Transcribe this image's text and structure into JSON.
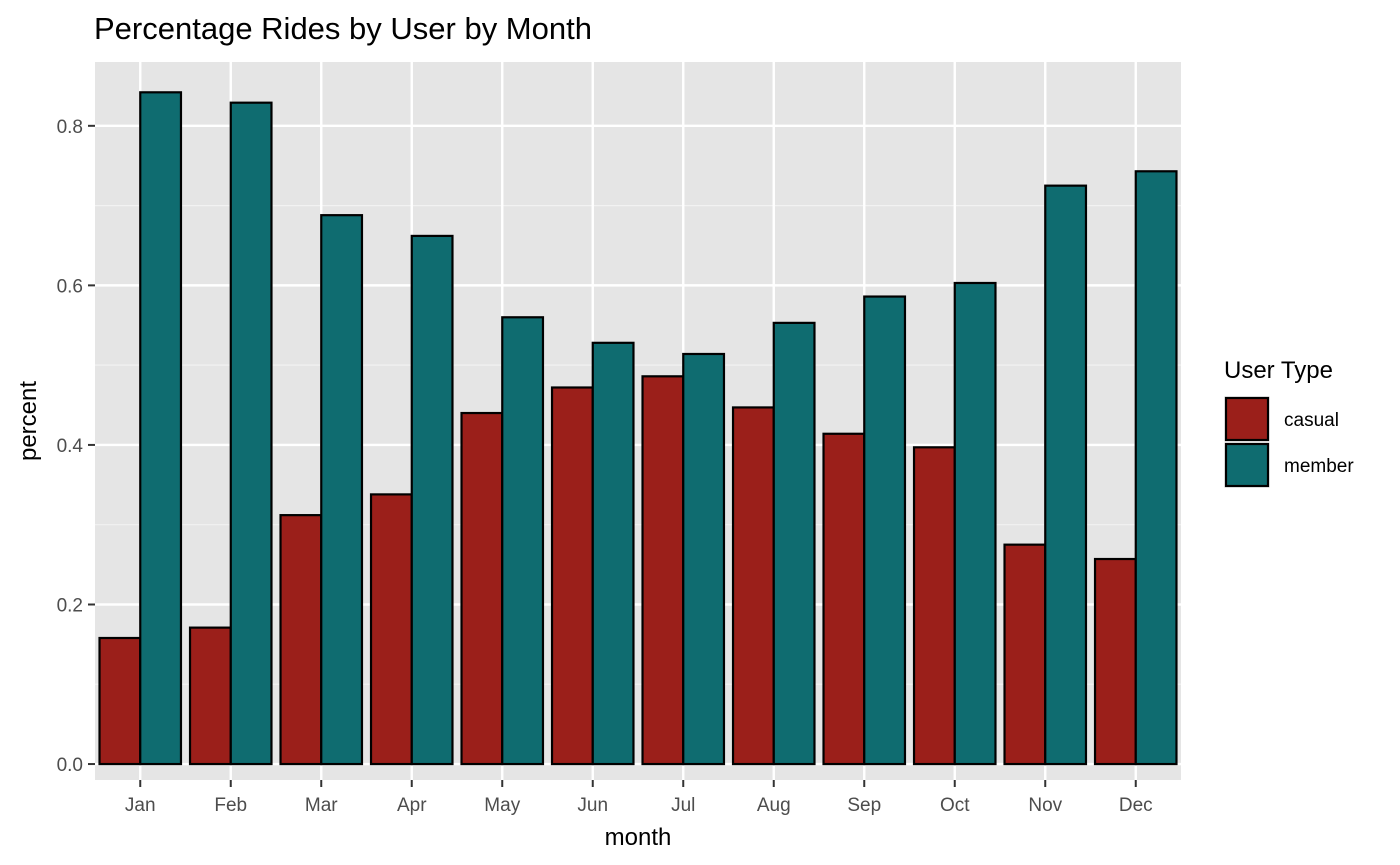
{
  "chart_data": {
    "type": "bar",
    "title": "Percentage Rides by User by Month",
    "xlabel": "month",
    "ylabel": "percent",
    "categories": [
      "Jan",
      "Feb",
      "Mar",
      "Apr",
      "May",
      "Jun",
      "Jul",
      "Aug",
      "Sep",
      "Oct",
      "Nov",
      "Dec"
    ],
    "series": [
      {
        "name": "casual",
        "color": "#9b1f1a",
        "values": [
          0.158,
          0.171,
          0.312,
          0.338,
          0.44,
          0.472,
          0.486,
          0.447,
          0.414,
          0.397,
          0.275,
          0.257
        ]
      },
      {
        "name": "member",
        "color": "#0f6c70",
        "values": [
          0.842,
          0.829,
          0.688,
          0.662,
          0.56,
          0.528,
          0.514,
          0.553,
          0.586,
          0.603,
          0.725,
          0.743
        ]
      }
    ],
    "ylim": [
      -0.02,
      0.88
    ],
    "yticks": [
      0.0,
      0.2,
      0.4,
      0.6,
      0.8
    ],
    "ytick_labels": [
      "0.0",
      "0.2",
      "0.4",
      "0.6",
      "0.8"
    ],
    "grid": true,
    "panel_background": "#e5e5e5",
    "bar_outline": "#000000",
    "legend": {
      "title": "User Type",
      "placement": "right"
    }
  }
}
